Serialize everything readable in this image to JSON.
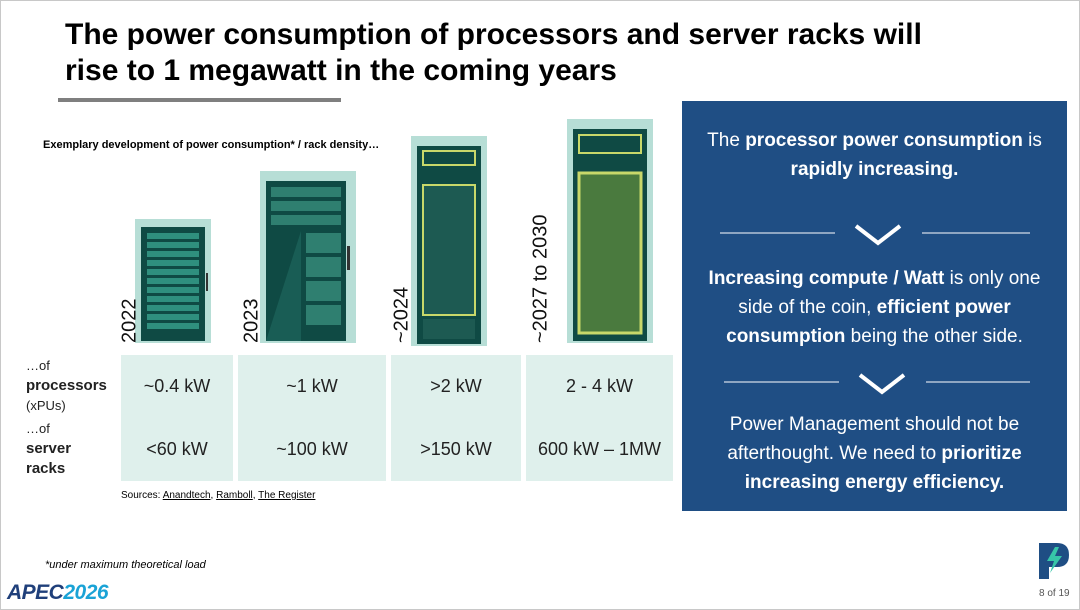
{
  "title_lines": [
    "The power consumption of processors and server racks will",
    "rise to 1 megawatt in the coming years"
  ],
  "caption": "Exemplary development of power consumption* / rack density…",
  "columns": [
    "2022",
    "2023",
    "~2024",
    "~2027 to 2030"
  ],
  "rows": [
    {
      "pre": "…of",
      "main": "processors",
      "post": "(xPUs)",
      "values": [
        "~0.4 kW",
        "~1 kW",
        ">2 kW",
        "2 - 4 kW"
      ]
    },
    {
      "pre": "…of",
      "main": "server racks",
      "values": [
        "<60 kW",
        "~100 kW",
        ">150 kW",
        "600 kW – 1MW"
      ]
    }
  ],
  "sources": {
    "prefix": "Sources:",
    "links": [
      "Anandtech",
      "Ramboll",
      "The Register"
    ],
    "separator": ","
  },
  "footnote": "*under maximum theoretical load",
  "panel": [
    [
      {
        "text": "The "
      },
      {
        "text": "processor power consumption",
        "bold": true
      },
      {
        "text": " is "
      },
      {
        "text": "rapidly increasing.",
        "bold": true
      }
    ],
    [
      {
        "text": "Increasing compute / Watt",
        "bold": true
      },
      {
        "text": " is only one side of the coin, "
      },
      {
        "text": "efficient power consumption",
        "bold": true
      },
      {
        "text": " being the other side."
      }
    ],
    [
      {
        "text": "Power Management should not be afterthought. We need to "
      },
      {
        "text": "prioritize increasing energy efficiency.",
        "bold": true
      }
    ]
  ],
  "footer": {
    "logo_name": "APEC",
    "logo_year": "2026",
    "page": "8 of 19"
  }
}
